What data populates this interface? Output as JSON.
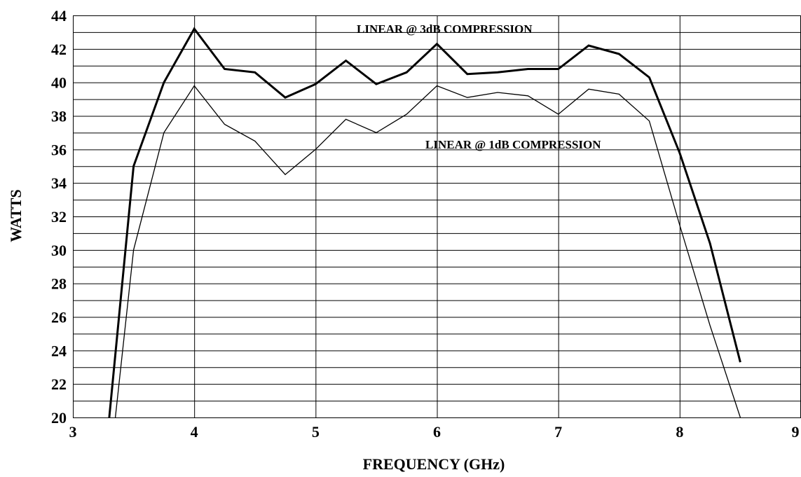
{
  "chart_data": {
    "type": "line",
    "title": "",
    "xlabel": "FREQUENCY (GHz)",
    "ylabel": "WATTS",
    "xlim": [
      3,
      9
    ],
    "ylim": [
      20,
      44
    ],
    "x_ticks": [
      3,
      4,
      5,
      6,
      7,
      8,
      9
    ],
    "y_ticks": [
      20,
      22,
      24,
      26,
      28,
      30,
      32,
      34,
      36,
      38,
      40,
      42,
      44
    ],
    "grid": true,
    "legend": "none",
    "series": [
      {
        "name": "LINEAR @ 3dB COMPRESSION",
        "x": [
          3.3,
          3.5,
          3.75,
          4.0,
          4.25,
          4.5,
          4.75,
          5.0,
          5.25,
          5.5,
          5.75,
          6.0,
          6.25,
          6.5,
          6.75,
          7.0,
          7.25,
          7.5,
          7.75,
          8.0,
          8.25,
          8.5
        ],
        "values": [
          20.0,
          35.0,
          40.0,
          43.2,
          40.8,
          40.6,
          39.1,
          39.9,
          41.3,
          39.9,
          40.6,
          42.3,
          40.5,
          40.6,
          40.8,
          40.8,
          42.2,
          41.7,
          40.3,
          35.8,
          30.4,
          23.3
        ]
      },
      {
        "name": "LINEAR @ 1dB COMPRESSION",
        "x": [
          3.35,
          3.5,
          3.75,
          4.0,
          4.25,
          4.5,
          4.75,
          5.0,
          5.25,
          5.5,
          5.75,
          6.0,
          6.25,
          6.5,
          6.75,
          7.0,
          7.25,
          7.5,
          7.75,
          8.0,
          8.25,
          8.5
        ],
        "values": [
          20.0,
          30.0,
          37.0,
          39.8,
          37.5,
          36.5,
          34.5,
          36.0,
          37.8,
          37.0,
          38.1,
          39.8,
          39.1,
          39.4,
          39.2,
          38.1,
          39.6,
          39.3,
          37.7,
          31.5,
          25.5,
          20.0
        ]
      }
    ],
    "annotations": [
      {
        "text": "LINEAR @ 3dB COMPRESSION",
        "series": 0
      },
      {
        "text": "LINEAR @ 1dB COMPRESSION",
        "series": 1
      }
    ]
  }
}
